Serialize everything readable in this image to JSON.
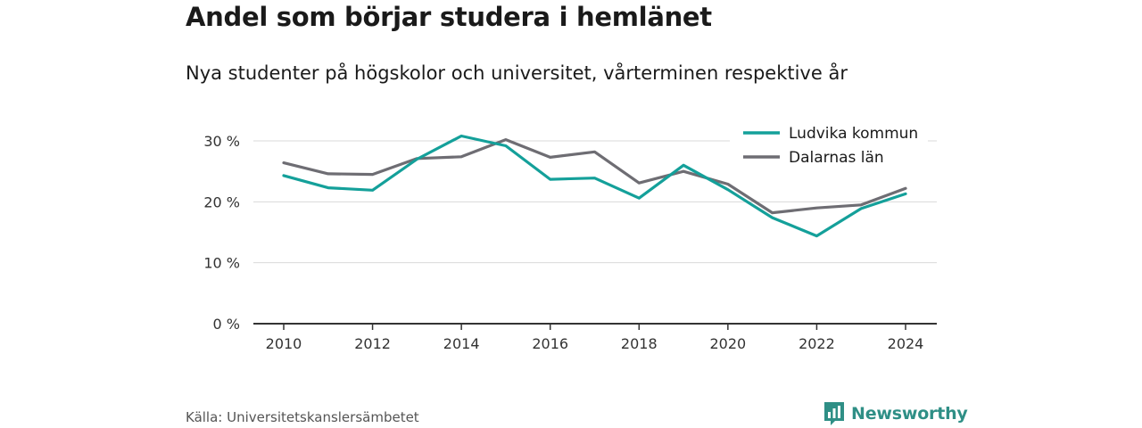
{
  "title": "Andel som börjar studera i hemlänet",
  "subtitle": "Nya studenter på högskolor och universitet, vårterminen respektive år",
  "source": "Källa: Universitetskanslersämbetet",
  "brand": {
    "name": "Newsworthy",
    "icon": "bar-chart-logo-icon"
  },
  "colors": {
    "ludvika": "#14a09a",
    "dalarna": "#6e6d73",
    "grid": "#d9d9d9",
    "axis": "#333333"
  },
  "chart_data": {
    "type": "line",
    "x": [
      2010,
      2011,
      2012,
      2013,
      2014,
      2015,
      2016,
      2017,
      2018,
      2019,
      2020,
      2021,
      2022,
      2023,
      2024
    ],
    "x_ticks": [
      "2010",
      "2012",
      "2014",
      "2016",
      "2018",
      "2020",
      "2022",
      "2024"
    ],
    "y_ticks": [
      "0 %",
      "10 %",
      "20 %",
      "30 %"
    ],
    "ylim": [
      0,
      30
    ],
    "grid": true,
    "legend_position": "top-right",
    "series": [
      {
        "name": "Ludvika kommun",
        "values": [
          24.3,
          22.3,
          21.9,
          27.0,
          30.8,
          29.2,
          23.7,
          23.9,
          20.6,
          26.0,
          22.0,
          17.4,
          14.4,
          18.9,
          21.3
        ]
      },
      {
        "name": "Dalarnas län",
        "values": [
          26.4,
          24.6,
          24.5,
          27.1,
          27.4,
          30.2,
          27.3,
          28.2,
          23.1,
          25.0,
          22.9,
          18.2,
          19.0,
          19.5,
          22.2
        ]
      }
    ]
  }
}
